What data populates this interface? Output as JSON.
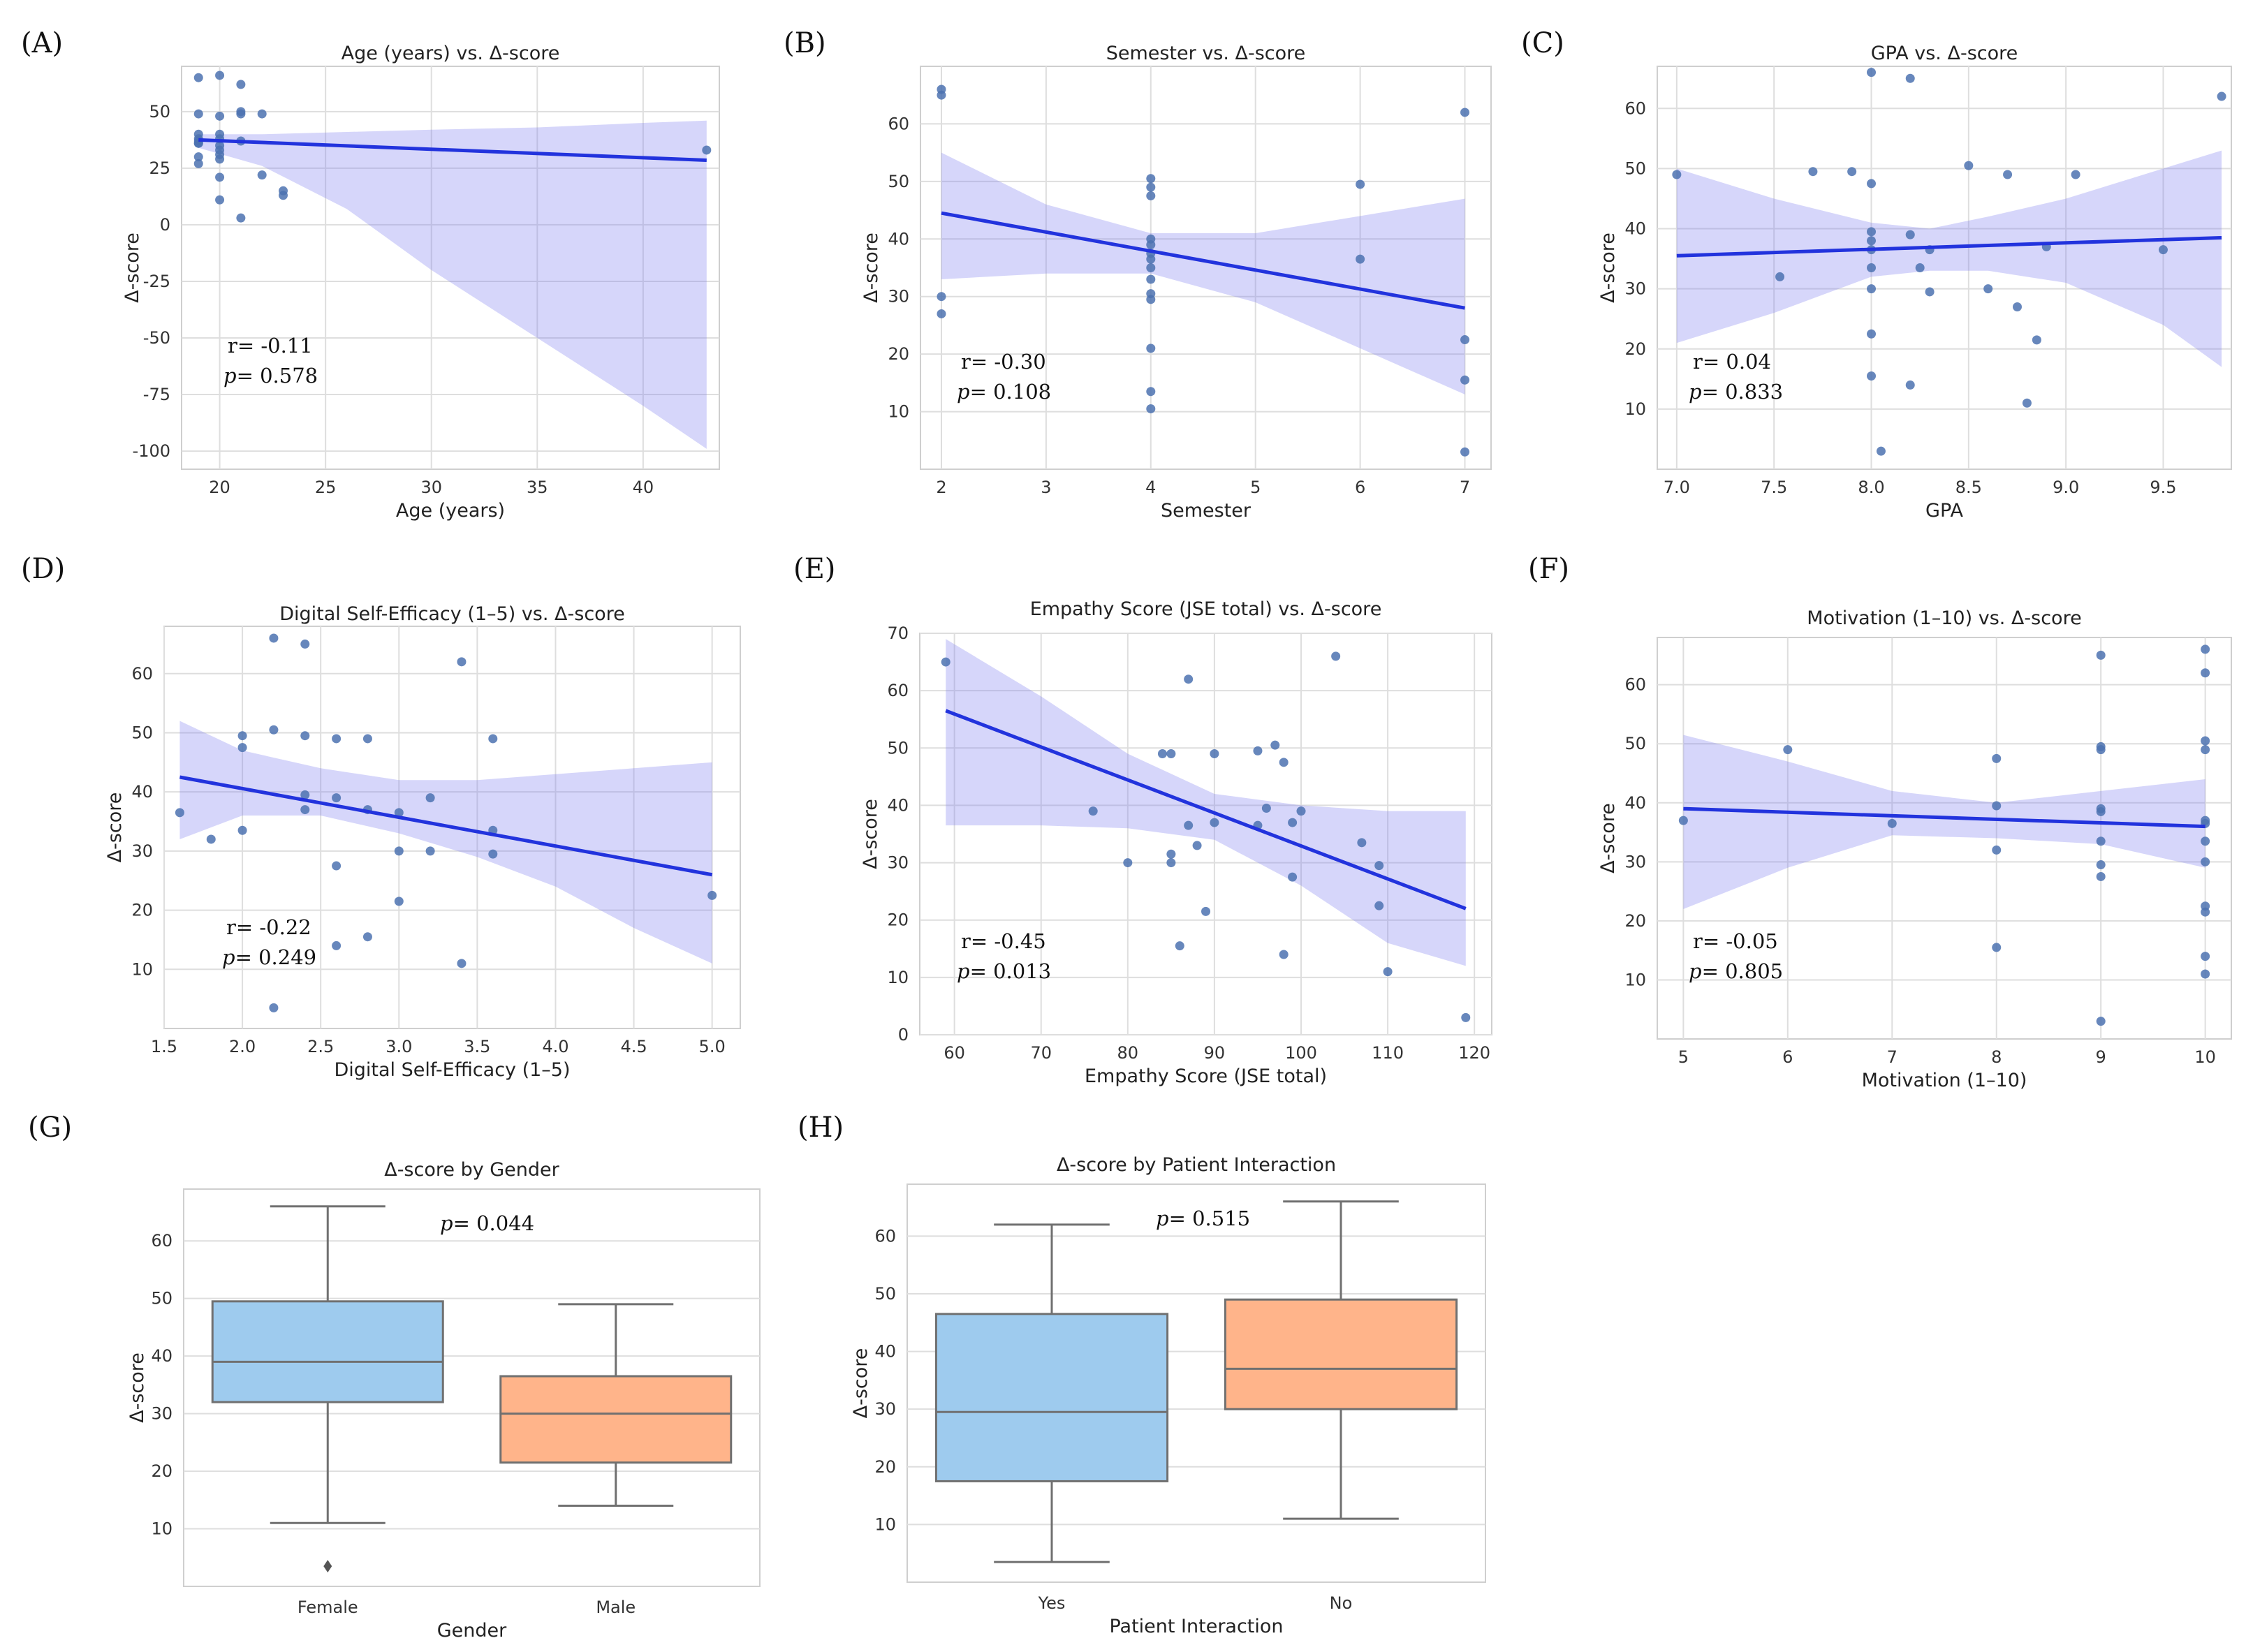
{
  "figure_labels": [
    "(A)",
    "(B)",
    "(C)",
    "(D)",
    "(E)",
    "(F)",
    "(G)",
    "(H)"
  ],
  "ylabel_common": "Δ-score",
  "colors": {
    "points": "#4c72b0",
    "fit": "#2233dd",
    "band": "#7777ee",
    "box_blue": "#9ecbee",
    "box_orange": "#ffb48a",
    "grid": "#dedede"
  },
  "chart_data": [
    {
      "panel": "(A)",
      "type": "scatter",
      "title": "Age (years) vs. Δ-score",
      "xlabel": "Age (years)",
      "ylabel": "Δ-score",
      "xlim": [
        18.2,
        43.6
      ],
      "ylim": [
        -108,
        70
      ],
      "xticks": [
        20,
        25,
        30,
        35,
        40
      ],
      "yticks": [
        -100,
        -75,
        -50,
        -25,
        0,
        25,
        50
      ],
      "x": [
        19,
        19,
        19,
        19,
        19,
        19,
        19,
        19,
        19,
        20,
        20,
        20,
        20,
        20,
        20,
        20,
        20,
        20,
        20,
        21,
        21,
        21,
        21,
        21,
        22,
        22,
        23,
        23,
        43
      ],
      "y": [
        65,
        49,
        40,
        38,
        37,
        36,
        30,
        27,
        36,
        66,
        48,
        40,
        38,
        33,
        31,
        29,
        21,
        11,
        35,
        62,
        50,
        49,
        37,
        3,
        49,
        22,
        15,
        13,
        33
      ],
      "fit": {
        "x": [
          19,
          43
        ],
        "y": [
          37.5,
          28.5
        ]
      },
      "ci": {
        "x": [
          19,
          22,
          26,
          30,
          35,
          40,
          43
        ],
        "upper": [
          40,
          40,
          41,
          42,
          43,
          45,
          46
        ],
        "lower": [
          34,
          26,
          7,
          -20,
          -50,
          -80,
          -99
        ]
      },
      "stats": {
        "r": "r= -0.11",
        "p": "p= 0.578"
      }
    },
    {
      "panel": "(B)",
      "type": "scatter",
      "title": "Semester vs. Δ-score",
      "xlabel": "Semester",
      "ylabel": "Δ-score",
      "xlim": [
        1.8,
        7.25
      ],
      "ylim": [
        0,
        70
      ],
      "xticks": [
        2,
        3,
        4,
        5,
        6,
        7
      ],
      "yticks": [
        10,
        20,
        30,
        40,
        50,
        60
      ],
      "x": [
        2,
        2,
        2,
        2,
        4,
        4,
        4,
        4,
        4,
        4,
        4,
        4,
        4,
        4,
        4,
        4,
        4,
        4,
        6,
        6,
        7,
        7,
        7,
        7
      ],
      "y": [
        66,
        65,
        30,
        27,
        50.5,
        49,
        47.5,
        39,
        37.5,
        36.5,
        35,
        33,
        30.5,
        29.5,
        21,
        13.5,
        10.5,
        40,
        49.5,
        36.5,
        62,
        22.5,
        15.5,
        3
      ],
      "fit": {
        "x": [
          2,
          7
        ],
        "y": [
          44.5,
          28
        ]
      },
      "ci": {
        "x": [
          2,
          3,
          4,
          5,
          6,
          7
        ],
        "upper": [
          55,
          46,
          41,
          41,
          44,
          47
        ],
        "lower": [
          33,
          34,
          34,
          29,
          21,
          13
        ]
      },
      "stats": {
        "r": "r= -0.30",
        "p": "p= 0.108"
      }
    },
    {
      "panel": "(C)",
      "type": "scatter",
      "title": "GPA vs. Δ-score",
      "xlabel": "GPA",
      "ylabel": "Δ-score",
      "xlim": [
        6.9,
        9.85
      ],
      "ylim": [
        0,
        67
      ],
      "xticks": [
        7.0,
        7.5,
        8.0,
        8.5,
        9.0,
        9.5
      ],
      "yticks": [
        10,
        20,
        30,
        40,
        50,
        60
      ],
      "x": [
        7.0,
        7.53,
        7.7,
        7.9,
        8.0,
        8.0,
        8.0,
        8.0,
        8.0,
        8.0,
        8.0,
        8.0,
        8.0,
        8.05,
        8.2,
        8.2,
        8.2,
        8.25,
        8.3,
        8.3,
        8.5,
        8.6,
        8.7,
        8.75,
        8.8,
        8.85,
        8.9,
        9.05,
        9.5,
        9.8
      ],
      "y": [
        49,
        32,
        49.5,
        49.5,
        66,
        47.5,
        39.5,
        38,
        36.5,
        33.5,
        30,
        22.5,
        15.5,
        3,
        65,
        39,
        14,
        33.5,
        36.5,
        29.5,
        50.5,
        30,
        49,
        27,
        11,
        21.5,
        37,
        49,
        36.5,
        62
      ],
      "fit": {
        "x": [
          7.0,
          9.8
        ],
        "y": [
          35.5,
          38.5
        ]
      },
      "ci": {
        "x": [
          7.0,
          7.5,
          8.0,
          8.3,
          8.6,
          9.0,
          9.5,
          9.8
        ],
        "upper": [
          50,
          45,
          41,
          40,
          42,
          45,
          50,
          53
        ],
        "lower": [
          21,
          26,
          32,
          33,
          33,
          31,
          24,
          17
        ]
      },
      "stats": {
        "r": "r= 0.04",
        "p": "p= 0.833"
      }
    },
    {
      "panel": "(D)",
      "type": "scatter",
      "title": "Digital Self-Efficacy (1–5) vs. Δ-score",
      "xlabel": "Digital Self-Efficacy (1–5)",
      "ylabel": "Δ-score",
      "xlim": [
        1.5,
        5.18
      ],
      "ylim": [
        0,
        68
      ],
      "xticks": [
        1.5,
        2.0,
        2.5,
        3.0,
        3.5,
        4.0,
        4.5,
        5.0
      ],
      "yticks": [
        10,
        20,
        30,
        40,
        50,
        60
      ],
      "x": [
        1.6,
        1.8,
        2.0,
        2.0,
        2.0,
        2.2,
        2.2,
        2.2,
        2.4,
        2.4,
        2.4,
        2.4,
        2.6,
        2.6,
        2.6,
        2.6,
        2.8,
        2.8,
        2.8,
        3.0,
        3.0,
        3.0,
        3.2,
        3.2,
        3.4,
        3.4,
        3.6,
        3.6,
        3.6,
        5.0
      ],
      "y": [
        36.5,
        32,
        49.5,
        47.5,
        33.5,
        66,
        50.5,
        3.5,
        65,
        49.5,
        39.5,
        37,
        49,
        39,
        27.5,
        14,
        49,
        37,
        15.5,
        36.5,
        30,
        21.5,
        39,
        30,
        62,
        11,
        49,
        33.5,
        29.5,
        22.5
      ],
      "fit": {
        "x": [
          1.6,
          5.0
        ],
        "y": [
          42.5,
          26
        ]
      },
      "ci": {
        "x": [
          1.6,
          2.0,
          2.5,
          3.0,
          3.5,
          4.0,
          4.5,
          5.0
        ],
        "upper": [
          52,
          47,
          44,
          42,
          42,
          43,
          44,
          45
        ],
        "lower": [
          32,
          36,
          36,
          33,
          29,
          24,
          17,
          11
        ]
      },
      "stats": {
        "r": "r= -0.22",
        "p": "p= 0.249"
      }
    },
    {
      "panel": "(E)",
      "type": "scatter",
      "title": "Empathy Score (JSE total) vs. Δ-score",
      "xlabel": "Empathy Score (JSE total)",
      "ylabel": "Δ-score",
      "xlim": [
        56,
        122
      ],
      "ylim": [
        0,
        70
      ],
      "xticks": [
        60,
        70,
        80,
        90,
        100,
        110,
        120
      ],
      "yticks": [
        0,
        10,
        20,
        30,
        40,
        50,
        60,
        70
      ],
      "x": [
        59,
        76,
        80,
        84,
        85,
        85,
        85,
        86,
        87,
        87,
        88,
        89,
        90,
        90,
        95,
        95,
        96,
        97,
        98,
        98,
        99,
        99,
        100,
        104,
        107,
        109,
        109,
        110,
        119
      ],
      "y": [
        65,
        39,
        30,
        49,
        49,
        31.5,
        30,
        15.5,
        36.5,
        62,
        33,
        21.5,
        49,
        37,
        49.5,
        36.5,
        39.5,
        50.5,
        47.5,
        14,
        37,
        27.5,
        39,
        66,
        33.5,
        29.5,
        22.5,
        11,
        3
      ],
      "fit": {
        "x": [
          59,
          119
        ],
        "y": [
          56.5,
          22
        ]
      },
      "ci": {
        "x": [
          59,
          70,
          80,
          90,
          100,
          110,
          119
        ],
        "upper": [
          69,
          59,
          49,
          42,
          40,
          39,
          39
        ],
        "lower": [
          36.5,
          36.5,
          36,
          34,
          26,
          16,
          12
        ]
      },
      "stats": {
        "r": "r= -0.45",
        "p": "p= 0.013"
      }
    },
    {
      "panel": "(F)",
      "type": "scatter",
      "title": "Motivation (1–10) vs. Δ-score",
      "xlabel": "Motivation (1–10)",
      "ylabel": "Δ-score",
      "xlim": [
        4.75,
        10.25
      ],
      "ylim": [
        0,
        68
      ],
      "xticks": [
        5,
        6,
        7,
        8,
        9,
        10
      ],
      "yticks": [
        10,
        20,
        30,
        40,
        50,
        60
      ],
      "x": [
        5,
        6,
        7,
        8,
        8,
        8,
        8,
        9,
        9,
        9,
        9,
        9,
        9,
        9,
        9,
        9,
        10,
        10,
        10,
        10,
        10,
        10,
        10,
        10,
        10,
        10,
        10,
        10
      ],
      "y": [
        37,
        49,
        36.5,
        47.5,
        39.5,
        32,
        15.5,
        65,
        49.5,
        49,
        39,
        38.5,
        33.5,
        29.5,
        27.5,
        3,
        66,
        62,
        50.5,
        49,
        37,
        36.5,
        33.5,
        30,
        22.5,
        21.5,
        14,
        11
      ],
      "fit": {
        "x": [
          5,
          10
        ],
        "y": [
          39,
          36
        ]
      },
      "ci": {
        "x": [
          5,
          6,
          7,
          8,
          9,
          10
        ],
        "upper": [
          51.5,
          47,
          42,
          40,
          42,
          44
        ],
        "lower": [
          22,
          29,
          34.5,
          34,
          33,
          29
        ]
      },
      "stats": {
        "r": "r= -0.05",
        "p": "p= 0.805"
      }
    },
    {
      "panel": "(G)",
      "type": "box",
      "title": "Δ-score by Gender",
      "xlabel": "Gender",
      "ylabel": "Δ-score",
      "ylim": [
        0,
        69
      ],
      "yticks": [
        10,
        20,
        30,
        40,
        50,
        60
      ],
      "categories": [
        "Female",
        "Male"
      ],
      "boxes": [
        {
          "name": "Female",
          "whislo": 11,
          "q1": 32,
          "med": 39,
          "q3": 49.5,
          "whishi": 66,
          "fliers": [
            3.5
          ],
          "color": "#9ecbee"
        },
        {
          "name": "Male",
          "whislo": 14,
          "q1": 21.5,
          "med": 30,
          "q3": 36.5,
          "whishi": 49,
          "fliers": [],
          "color": "#ffb48a"
        }
      ],
      "stats": {
        "p": "p= 0.044"
      }
    },
    {
      "panel": "(H)",
      "type": "box",
      "title": "Δ-score by Patient Interaction",
      "xlabel": "Patient Interaction",
      "ylabel": "Δ-score",
      "ylim": [
        0,
        69
      ],
      "yticks": [
        10,
        20,
        30,
        40,
        50,
        60
      ],
      "categories": [
        "Yes",
        "No"
      ],
      "boxes": [
        {
          "name": "Yes",
          "whislo": 3.5,
          "q1": 17.5,
          "med": 29.5,
          "q3": 46.5,
          "whishi": 62,
          "fliers": [],
          "color": "#9ecbee"
        },
        {
          "name": "No",
          "whislo": 11,
          "q1": 30,
          "med": 37,
          "q3": 49,
          "whishi": 66,
          "fliers": [],
          "color": "#ffb48a"
        }
      ],
      "stats": {
        "p": "p= 0.515"
      }
    }
  ]
}
